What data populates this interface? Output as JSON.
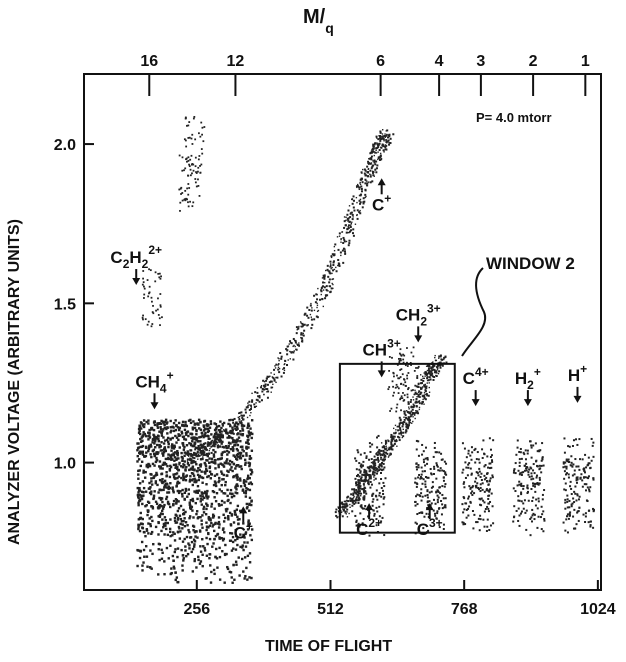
{
  "chart_data": {
    "type": "scatter",
    "title": "",
    "pressure_note": "P= 4.0 mtorr",
    "xlabel": "TIME OF FLIGHT",
    "ylabel": "ANALYZER VOLTAGE (ARBITRARY UNITS)",
    "top_axis_label": {
      "base": "M",
      "sub": "q"
    },
    "xlim": [
      40,
      1030
    ],
    "ylim": [
      0.6,
      2.22
    ],
    "x_ticks": [
      256,
      512,
      768,
      1024
    ],
    "x_tick_labels": [
      "256",
      "512",
      "768",
      "1024"
    ],
    "y_ticks": [
      1.0,
      1.5,
      2.0
    ],
    "y_tick_labels": [
      "1.0",
      "1.5",
      "2.0"
    ],
    "top_ticks": [
      {
        "label": "16",
        "x": 165
      },
      {
        "label": "12",
        "x": 330
      },
      {
        "label": "6",
        "x": 608
      },
      {
        "label": "4",
        "x": 720
      },
      {
        "label": "3",
        "x": 800
      },
      {
        "label": "2",
        "x": 900
      },
      {
        "label": "1",
        "x": 1000
      }
    ],
    "annotations": [
      {
        "id": "c-plus-top",
        "base": "C",
        "sup": "+",
        "sub": "",
        "x": 610,
        "y": 1.88,
        "arrow": "up"
      },
      {
        "id": "c2h2-2plus",
        "base": "C",
        "sub": "2",
        "mid": "H",
        "sub2": "2",
        "sup": "2+",
        "x": 140,
        "y": 1.57,
        "arrow": "down"
      },
      {
        "id": "ch4-plus",
        "base": "CH",
        "sup": "+",
        "sub": "4",
        "x": 175,
        "y": 1.18,
        "arrow": "down"
      },
      {
        "id": "c-plus-bottom",
        "base": "C",
        "sup": "+",
        "sub": "",
        "x": 345,
        "y": 0.85,
        "arrow": "up"
      },
      {
        "id": "ch2-3plus",
        "base": "CH",
        "sub": "2",
        "sup": "3+",
        "x": 680,
        "y": 1.39,
        "arrow": "down"
      },
      {
        "id": "ch-3plus",
        "base": "CH",
        "sup": "3+",
        "sub": "",
        "x": 610,
        "y": 1.28,
        "arrow": "down"
      },
      {
        "id": "c4-plus",
        "base": "C",
        "sup": "4+",
        "sub": "",
        "x": 790,
        "y": 1.19,
        "arrow": "down"
      },
      {
        "id": "h2-plus",
        "base": "H",
        "sup": "+",
        "sub": "2",
        "x": 890,
        "y": 1.19,
        "arrow": "down"
      },
      {
        "id": "h-plus",
        "base": "H",
        "sup": "+",
        "sub": "",
        "x": 985,
        "y": 1.2,
        "arrow": "down"
      },
      {
        "id": "c2-plus",
        "base": "C",
        "sup": "2+",
        "sub": "",
        "x": 586,
        "y": 0.86,
        "arrow": "up"
      },
      {
        "id": "c3-plus",
        "base": "C",
        "sup": "3+",
        "sub": "",
        "x": 702,
        "y": 0.86,
        "arrow": "up"
      }
    ],
    "window_label": "WINDOW 2",
    "window_box": {
      "x": [
        530,
        750
      ],
      "y": [
        0.78,
        1.31
      ]
    },
    "series": [
      {
        "kind": "diagonal-band",
        "x": [
          230,
          300,
          380,
          440,
          500,
          540,
          575,
          600,
          620
        ],
        "y": [
          1.0,
          1.08,
          1.22,
          1.37,
          1.55,
          1.72,
          1.88,
          1.98,
          2.04
        ]
      },
      {
        "kind": "diagonal-band",
        "x": [
          530,
          560,
          590,
          620,
          650,
          680,
          700,
          720
        ],
        "y": [
          0.84,
          0.9,
          0.98,
          1.05,
          1.12,
          1.2,
          1.28,
          1.33
        ]
      },
      {
        "kind": "low-mass-cluster",
        "x": [
          140,
          180,
          220,
          260,
          300,
          340
        ],
        "y": [
          1.0,
          1.0,
          1.0,
          1.0,
          1.0,
          1.0
        ]
      },
      {
        "kind": "peak-clusters",
        "x": [
          586,
          702,
          792,
          890,
          985
        ],
        "y": [
          0.98,
          0.98,
          0.98,
          0.98,
          0.98
        ]
      },
      {
        "kind": "upper-dots",
        "x": [
          170,
          240,
          250,
          640,
          660
        ],
        "y": [
          1.52,
          1.88,
          2.0,
          1.25,
          1.28
        ]
      }
    ]
  }
}
